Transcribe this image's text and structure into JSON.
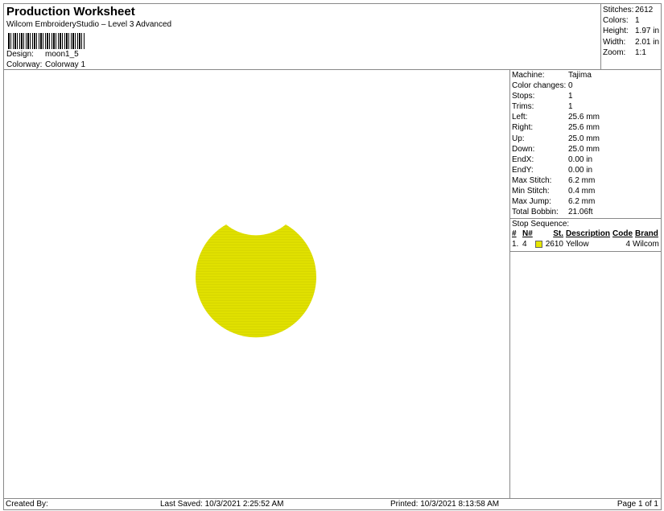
{
  "header": {
    "title": "Production Worksheet",
    "subtitle": "Wilcom EmbroideryStudio – Level 3 Advanced",
    "design_label": "Design:",
    "design": "moon1_5",
    "colorway_label": "Colorway:",
    "colorway": "Colorway 1"
  },
  "stats": [
    {
      "k": "Stitches:",
      "v": "2612"
    },
    {
      "k": "Colors:",
      "v": "1"
    },
    {
      "k": "Height:",
      "v": "1.97 in"
    },
    {
      "k": "Width:",
      "v": "2.01 in"
    },
    {
      "k": "Zoom:",
      "v": "1:1"
    }
  ],
  "details": [
    {
      "k": "Machine:",
      "v": "Tajima"
    },
    {
      "k": "Color changes:",
      "v": "0"
    },
    {
      "k": "Stops:",
      "v": "1"
    },
    {
      "k": "Trims:",
      "v": "1"
    },
    {
      "k": "Left:",
      "v": "25.6 mm"
    },
    {
      "k": "Right:",
      "v": "25.6 mm"
    },
    {
      "k": "Up:",
      "v": "25.0 mm"
    },
    {
      "k": "Down:",
      "v": "25.0 mm"
    },
    {
      "k": "EndX:",
      "v": "0.00 in"
    },
    {
      "k": "EndY:",
      "v": "0.00 in"
    },
    {
      "k": "Max Stitch:",
      "v": "6.2 mm"
    },
    {
      "k": "Min Stitch:",
      "v": "0.4 mm"
    },
    {
      "k": "Max Jump:",
      "v": "6.2 mm"
    },
    {
      "k": "Total Bobbin:",
      "v": "21.06ft"
    }
  ],
  "stop_sequence": {
    "label": "Stop Sequence:",
    "columns": [
      "#",
      "N#",
      "St.",
      "Description",
      "Code",
      "Brand"
    ],
    "rows": [
      {
        "num": "1.",
        "n": "4",
        "color": "#e6e600",
        "st": "2610",
        "desc": "Yellow",
        "code": "4",
        "brand": "Wilcom"
      }
    ]
  },
  "design_color": "#e6e600",
  "footer": {
    "created": "Created By:",
    "saved": "Last Saved: 10/3/2021 2:25:52 AM",
    "printed": "Printed: 10/3/2021 8:13:58 AM",
    "page": "Page 1 of 1"
  }
}
